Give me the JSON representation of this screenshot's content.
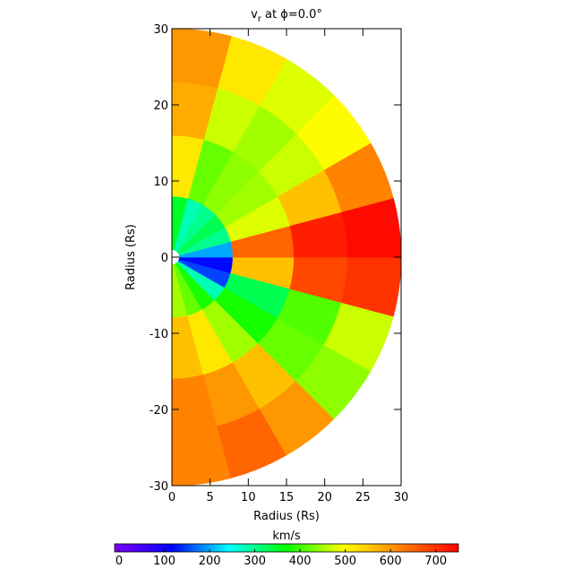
{
  "chart_data": {
    "type": "polar_heatmap",
    "title": {
      "main": "v",
      "sub": "r",
      "rest": " at ϕ=0.0°"
    },
    "x_label": "Radius (Rs)",
    "y_label": "Radius (Rs)",
    "xlim": [
      0,
      30
    ],
    "ylim": [
      -30,
      30
    ],
    "xticks": [
      0,
      5,
      10,
      15,
      20,
      25,
      30
    ],
    "yticks": [
      -30,
      -20,
      -10,
      0,
      10,
      20,
      30
    ],
    "r_edges": [
      1,
      8,
      16,
      23,
      30
    ],
    "theta_edges": [
      -90,
      -75,
      -60,
      -45,
      -30,
      -15,
      0,
      15,
      30,
      45,
      60,
      75,
      90
    ],
    "values": [
      [
        450,
        560,
        620,
        620
      ],
      [
        420,
        520,
        600,
        650
      ],
      [
        380,
        450,
        560,
        600
      ],
      [
        280,
        380,
        420,
        440
      ],
      [
        150,
        330,
        410,
        470
      ],
      [
        120,
        560,
        680,
        700
      ],
      [
        200,
        650,
        720,
        740
      ],
      [
        300,
        480,
        560,
        620
      ],
      [
        330,
        450,
        470,
        500
      ],
      [
        300,
        440,
        450,
        480
      ],
      [
        280,
        420,
        470,
        520
      ],
      [
        350,
        520,
        580,
        600
      ]
    ],
    "colorbar_label": "km/s",
    "clim": [
      -10,
      750
    ],
    "cticks": [
      0,
      100,
      200,
      300,
      400,
      500,
      600,
      700
    ],
    "colormap": [
      "#8000ff",
      "#0000ff",
      "#00ffff",
      "#00ff00",
      "#ffff00",
      "#ff8000",
      "#ff0000"
    ]
  }
}
